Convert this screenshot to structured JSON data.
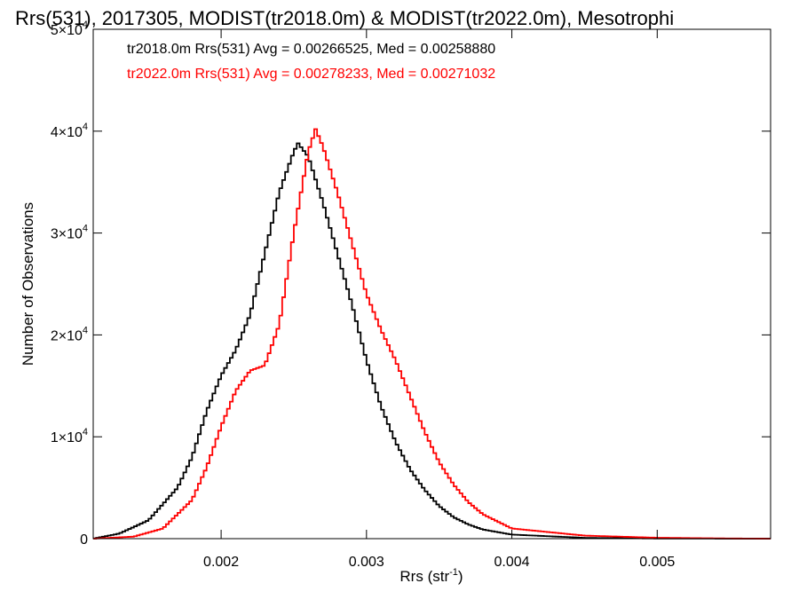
{
  "chart_data": {
    "type": "line",
    "step": true,
    "title": "Rrs(531), 2017305, MODIST(tr2018.0m) & MODIST(tr2022.0m), Mesotrophi",
    "xlabel": "Rrs (str",
    "xlabel_exp": "-1",
    "xlabel_close": ")",
    "ylabel": "Number of Observations",
    "xlim": [
      0.00112,
      0.00578
    ],
    "ylim": [
      0,
      50000
    ],
    "x_ticks": [
      {
        "value": 0.002,
        "label": "0.002"
      },
      {
        "value": 0.003,
        "label": "0.003"
      },
      {
        "value": 0.004,
        "label": "0.004"
      },
      {
        "value": 0.005,
        "label": "0.005"
      }
    ],
    "y_ticks": [
      {
        "value": 0,
        "mant": "0",
        "exp": ""
      },
      {
        "value": 10000,
        "mant": "1×10",
        "exp": "4"
      },
      {
        "value": 20000,
        "mant": "2×10",
        "exp": "4"
      },
      {
        "value": 30000,
        "mant": "3×10",
        "exp": "4"
      },
      {
        "value": 40000,
        "mant": "4×10",
        "exp": "4"
      },
      {
        "value": 50000,
        "mant": "5×10",
        "exp": "4"
      }
    ],
    "grid": false,
    "legend_position": "top-left",
    "bin_width": 2e-05,
    "series": [
      {
        "name": "tr2018.0m",
        "color": "#000000",
        "legend": "tr2018.0m Rrs(531) Avg = 0.00266525, Med = 0.00258880",
        "points": [
          [
            0.00112,
            0
          ],
          [
            0.0013,
            500
          ],
          [
            0.0015,
            1800
          ],
          [
            0.0017,
            5000
          ],
          [
            0.0018,
            8000
          ],
          [
            0.0019,
            12500
          ],
          [
            0.002,
            16000
          ],
          [
            0.0021,
            18500
          ],
          [
            0.0022,
            22000
          ],
          [
            0.0023,
            28000
          ],
          [
            0.0024,
            34000
          ],
          [
            0.0025,
            38000
          ],
          [
            0.00253,
            38800
          ],
          [
            0.0026,
            37500
          ],
          [
            0.0027,
            33000
          ],
          [
            0.0028,
            28000
          ],
          [
            0.0029,
            23000
          ],
          [
            0.003,
            17500
          ],
          [
            0.0031,
            13000
          ],
          [
            0.0032,
            9500
          ],
          [
            0.0033,
            6800
          ],
          [
            0.0034,
            4800
          ],
          [
            0.0035,
            3200
          ],
          [
            0.0036,
            2100
          ],
          [
            0.0037,
            1400
          ],
          [
            0.0038,
            900
          ],
          [
            0.004,
            400
          ],
          [
            0.0045,
            80
          ],
          [
            0.005,
            15
          ],
          [
            0.00578,
            0
          ]
        ]
      },
      {
        "name": "tr2022.0m",
        "color": "#ff0000",
        "legend": "tr2022.0m Rrs(531) Avg = 0.00278233, Med = 0.00271032",
        "points": [
          [
            0.00112,
            0
          ],
          [
            0.0014,
            200
          ],
          [
            0.0016,
            1000
          ],
          [
            0.0018,
            3800
          ],
          [
            0.0019,
            7000
          ],
          [
            0.002,
            11000
          ],
          [
            0.0021,
            14500
          ],
          [
            0.0022,
            16500
          ],
          [
            0.0023,
            17000
          ],
          [
            0.0024,
            21000
          ],
          [
            0.0025,
            30000
          ],
          [
            0.0026,
            38000
          ],
          [
            0.00265,
            40200
          ],
          [
            0.0027,
            38500
          ],
          [
            0.0028,
            34000
          ],
          [
            0.0029,
            29000
          ],
          [
            0.003,
            24000
          ],
          [
            0.0031,
            20500
          ],
          [
            0.0032,
            17500
          ],
          [
            0.0033,
            14000
          ],
          [
            0.0034,
            10500
          ],
          [
            0.0035,
            7500
          ],
          [
            0.0036,
            5300
          ],
          [
            0.0037,
            3600
          ],
          [
            0.0038,
            2400
          ],
          [
            0.004,
            1000
          ],
          [
            0.0045,
            300
          ],
          [
            0.005,
            90
          ],
          [
            0.0055,
            20
          ],
          [
            0.00578,
            0
          ]
        ]
      }
    ]
  }
}
